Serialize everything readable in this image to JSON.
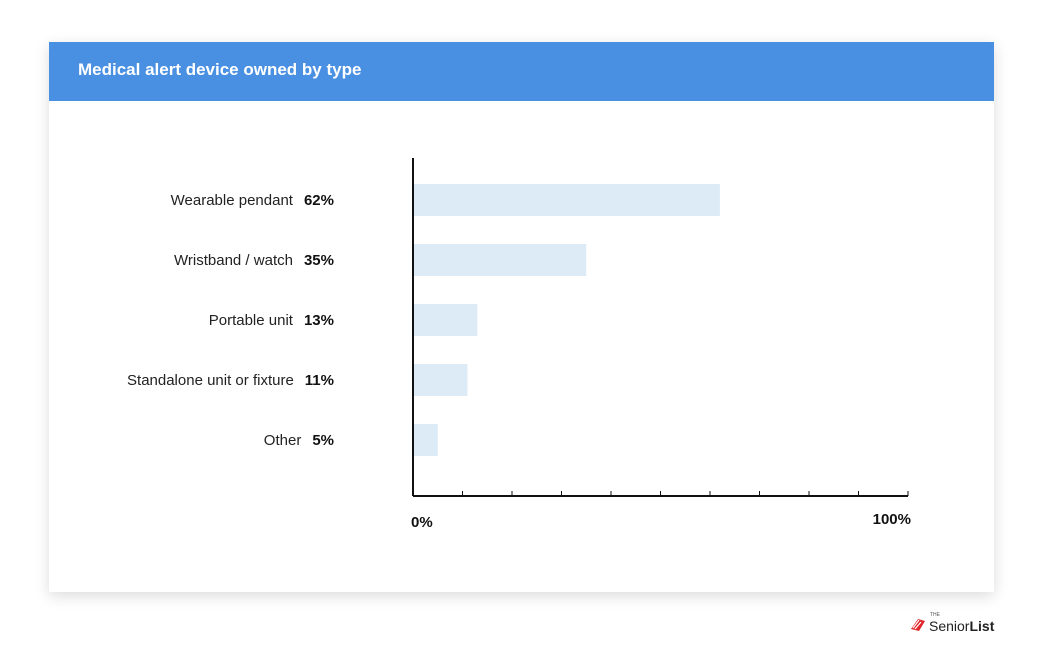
{
  "header": {
    "title": "Medical alert device owned by type"
  },
  "chart_data": {
    "type": "bar",
    "orientation": "horizontal",
    "categories": [
      "Wearable pendant",
      "Wristband / watch",
      "Portable unit",
      "Standalone unit or fixture",
      "Other"
    ],
    "values": [
      62,
      35,
      13,
      11,
      5
    ],
    "value_labels": [
      "62%",
      "35%",
      "13%",
      "11%",
      "5%"
    ],
    "xlim": [
      0,
      100
    ],
    "tick_labels": {
      "min": "0%",
      "max": "100%"
    },
    "minor_ticks": 10,
    "bar_color": "#ddebf6",
    "axis_color": "#111111"
  },
  "brand": {
    "prefix": "THE",
    "name_light": "Senior",
    "name_bold": "List",
    "logo_color": "#e0262b"
  }
}
